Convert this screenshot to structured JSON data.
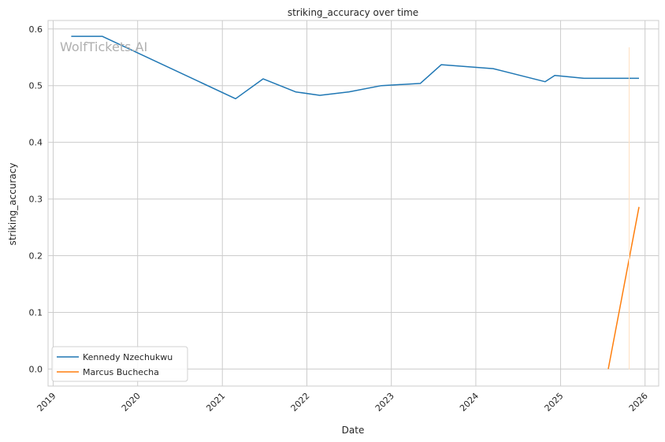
{
  "chart_data": {
    "type": "line",
    "title": "striking_accuracy over time",
    "xlabel": "Date",
    "ylabel": "striking_accuracy",
    "watermark": "WolfTickets.AI",
    "x_ticks": [
      "2019",
      "2020",
      "2021",
      "2022",
      "2023",
      "2024",
      "2025",
      "2026"
    ],
    "y_ticks": [
      "0.0",
      "0.1",
      "0.2",
      "0.3",
      "0.4",
      "0.5",
      "0.6"
    ],
    "xlim": [
      "2018-12-10",
      "2026-03-01"
    ],
    "ylim": [
      -0.03,
      0.615
    ],
    "grid": true,
    "legend_position": "lower-left",
    "series": [
      {
        "name": "Kennedy Nzechukwu",
        "color": "#1f77b4",
        "points": [
          {
            "x": "2019-03-20",
            "y": 0.587
          },
          {
            "x": "2019-08-01",
            "y": 0.587
          },
          {
            "x": "2021-02-27",
            "y": 0.477
          },
          {
            "x": "2021-06-26",
            "y": 0.512
          },
          {
            "x": "2021-11-13",
            "y": 0.489
          },
          {
            "x": "2022-02-26",
            "y": 0.483
          },
          {
            "x": "2022-07-02",
            "y": 0.489
          },
          {
            "x": "2022-11-19",
            "y": 0.5
          },
          {
            "x": "2023-05-06",
            "y": 0.504
          },
          {
            "x": "2023-08-05",
            "y": 0.537
          },
          {
            "x": "2024-03-16",
            "y": 0.53
          },
          {
            "x": "2024-10-26",
            "y": 0.507
          },
          {
            "x": "2024-12-07",
            "y": 0.518
          },
          {
            "x": "2025-04-12",
            "y": 0.513
          },
          {
            "x": "2025-12-06",
            "y": 0.513
          }
        ]
      },
      {
        "name": "Marcus Buchecha",
        "color": "#ff7f0e",
        "points": [
          {
            "x": "2025-07-26",
            "y": 0.0
          },
          {
            "x": "2025-12-06",
            "y": 0.286
          }
        ]
      }
    ]
  }
}
